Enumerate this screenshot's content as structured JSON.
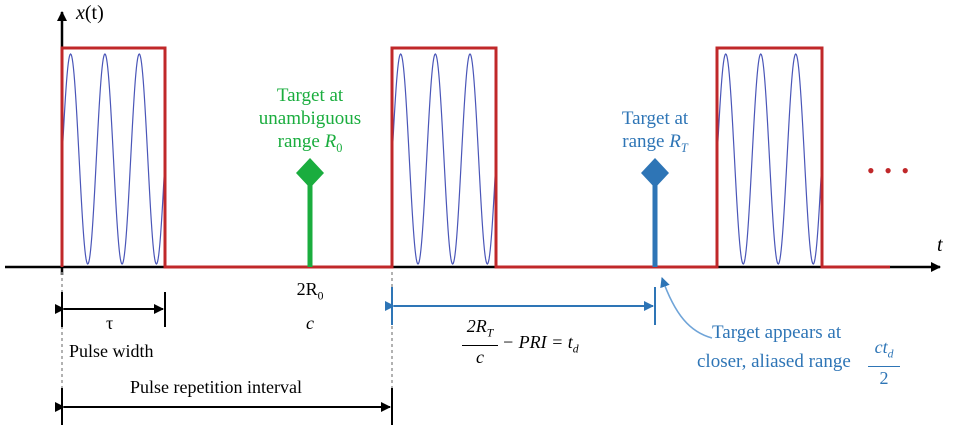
{
  "axes": {
    "y_label_main": "x",
    "y_label_arg": "(t)",
    "x_label": "t"
  },
  "targets": {
    "unambiguous": {
      "line1": "Target at",
      "line2": "unambiguous",
      "line3_prefix": "range ",
      "symbol": "R",
      "subscript": "0"
    },
    "far": {
      "line1": "Target at",
      "line2_prefix": "range ",
      "symbol": "R",
      "subscript": "T"
    }
  },
  "annotations": {
    "round_trip_num": "2R",
    "round_trip_num_sub": "0",
    "round_trip_den": "c",
    "tau": "τ",
    "pulse_width": "Pulse width",
    "pri": "Pulse repetition interval",
    "delay_num": "2R",
    "delay_num_sub": "T",
    "delay_den": "c",
    "delay_rest": " − PRI = t",
    "delay_rest_sub": "d",
    "aliased_line1": "Target appears at",
    "aliased_line2": "closer, aliased range ",
    "aliased_frac_num": "ct",
    "aliased_frac_num_sub": "d",
    "aliased_frac_den": "2",
    "ellipsis": "• • •"
  },
  "colors": {
    "pulse": "#c0282a",
    "carrier": "#4a56b8",
    "green": "#1aad3e",
    "blue": "#2e75b6",
    "axis": "#000000"
  }
}
